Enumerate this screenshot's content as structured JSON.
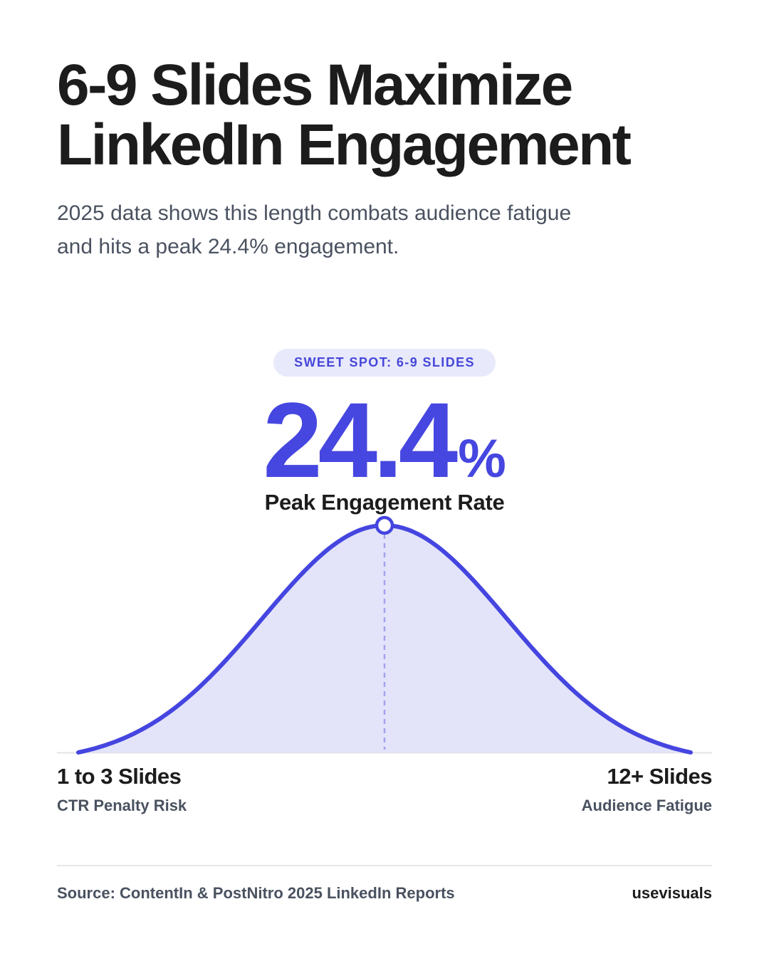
{
  "header": {
    "title_line1": "6-9 Slides Maximize",
    "title_line2": "LinkedIn Engagement",
    "subtitle": "2025 data shows this length combats audience fatigue and hits a peak 24.4% engagement."
  },
  "highlight": {
    "badge": "SWEET SPOT: 6-9 SLIDES",
    "value": "24.4",
    "unit": "%",
    "label": "Peak Engagement Rate"
  },
  "chart_data": {
    "type": "area",
    "title": "",
    "xlabel": "",
    "ylabel": "",
    "peak": {
      "x": 0.5,
      "y": 1.0
    },
    "ylim": [
      0,
      1
    ],
    "grid": false,
    "x_extremes": {
      "left_label": "1 to 3 Slides",
      "left_sublabel": "CTR Penalty Risk",
      "right_label": "12+ Slides",
      "right_sublabel": "Audience Fatigue"
    },
    "colors": {
      "line": "#4545e0",
      "fill": "#e3e4fa",
      "peak_marker_fill": "#ffffff",
      "peak_guide": "#a3a3ec",
      "baseline": "#e2e3e8"
    }
  },
  "footer": {
    "source": "Source: ContentIn & PostNitro 2025 LinkedIn Reports",
    "brand": "usevisuals"
  }
}
